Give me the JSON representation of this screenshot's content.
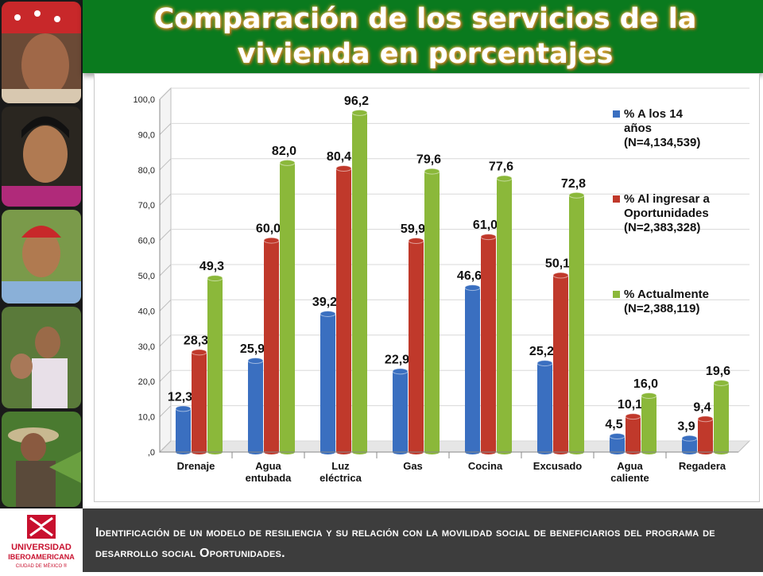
{
  "title": "Comparación de los servicios de la vivienda en porcentajes",
  "footer_text": "Identificación de un modelo de resiliencia y su relación con la movilidad social de beneficiarios del programa de desarrollo social Oportunidades.",
  "logo": {
    "line1": "UNIVERSIDAD",
    "line2": "IBEROAMERICANA",
    "line3": "CIUDAD DE MÉXICO ®"
  },
  "colors": {
    "header_bg": "#0a7a1e",
    "series_blue": "#3a6fc0",
    "series_red": "#c0392b",
    "series_green": "#8bb83a",
    "logo_red": "#c8102e"
  },
  "chart_data": {
    "type": "bar",
    "title": "",
    "xlabel": "",
    "ylabel": "",
    "ylim": [
      0,
      100
    ],
    "yticks": [
      ",0",
      "10,0",
      "20,0",
      "30,0",
      "40,0",
      "50,0",
      "60,0",
      "70,0",
      "80,0",
      "90,0",
      "100,0"
    ],
    "categories": [
      [
        "Drenaje"
      ],
      [
        "Agua",
        "entubada"
      ],
      [
        "Luz",
        "eléctrica"
      ],
      [
        "Gas"
      ],
      [
        "Cocina"
      ],
      [
        "Excusado"
      ],
      [
        "Agua",
        "caliente"
      ],
      [
        "Regadera"
      ]
    ],
    "legend_position": "right",
    "series": [
      {
        "name": [
          "% A los 14",
          "años",
          "(N=4,134,539)"
        ],
        "color": "#3a6fc0",
        "values": [
          12.3,
          25.9,
          39.2,
          22.9,
          46.6,
          25.2,
          4.5,
          3.9
        ],
        "labels": [
          "12,3",
          "25,9",
          "39,2",
          "22,9",
          "46,6",
          "25,2",
          "4,5",
          "3,9"
        ]
      },
      {
        "name": [
          "% Al ingresar a",
          "Oportunidades",
          "(N=2,383,328)"
        ],
        "color": "#c0392b",
        "values": [
          28.3,
          60.0,
          80.4,
          59.9,
          61.0,
          50.1,
          10.1,
          9.4
        ],
        "labels": [
          "28,3",
          "60,0",
          "80,4",
          "59,9",
          "61,0",
          "50,1",
          "10,1",
          "9,4"
        ]
      },
      {
        "name": [
          "% Actualmente",
          "(N=2,388,119)"
        ],
        "color": "#8bb83a",
        "values": [
          49.3,
          82.0,
          96.2,
          79.6,
          77.6,
          72.8,
          16.0,
          19.6
        ],
        "labels": [
          "49,3",
          "82,0",
          "96,2",
          "79,6",
          "77,6",
          "72,8",
          "16,0",
          "19,6"
        ]
      }
    ]
  }
}
